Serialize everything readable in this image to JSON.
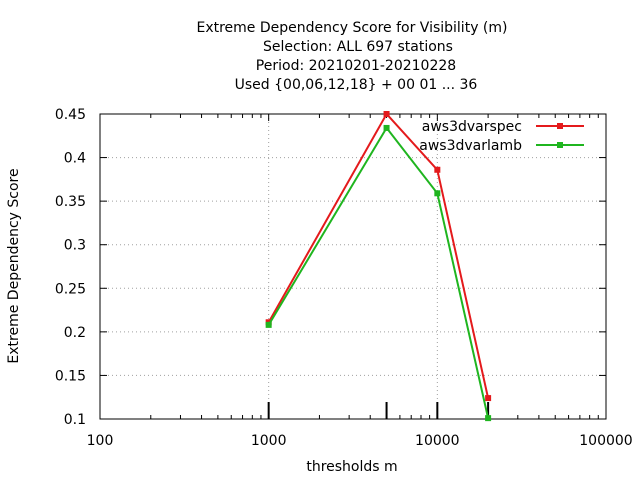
{
  "chart_data": {
    "type": "line",
    "title_lines": [
      "Extreme Dependency Score  for Visibility (m)",
      "Selection: ALL    697 stations",
      "Period: 20210201-20210228",
      "Used {00,06,12,18} + 00 01 ... 36"
    ],
    "xlabel": "thresholds m",
    "ylabel": "Extreme Dependency Score",
    "x_scale": "log",
    "xlim": [
      100,
      100000
    ],
    "ylim": [
      0.1,
      0.45
    ],
    "x_ticks": [
      100,
      1000,
      10000,
      100000
    ],
    "x_tick_labels": [
      "100",
      "1000",
      "10000",
      "100000"
    ],
    "y_ticks": [
      0.1,
      0.15,
      0.2,
      0.25,
      0.3,
      0.35,
      0.4,
      0.45
    ],
    "y_tick_labels": [
      "0.1",
      "0.15",
      "0.2",
      "0.25",
      "0.3",
      "0.35",
      "0.4",
      "0.45"
    ],
    "grid": true,
    "legend_position": "top-right",
    "threshold_markers": [
      1000,
      5000,
      10000,
      20000
    ],
    "series": [
      {
        "name": "aws3dvarspec",
        "color": "#e41a1c",
        "x": [
          1000,
          5000,
          10000,
          20000
        ],
        "y": [
          0.211,
          0.45,
          0.386,
          0.124
        ]
      },
      {
        "name": "aws3dvarlamb",
        "color": "#1fb51f",
        "x": [
          1000,
          5000,
          10000,
          20000
        ],
        "y": [
          0.208,
          0.434,
          0.359,
          0.101
        ]
      }
    ]
  }
}
